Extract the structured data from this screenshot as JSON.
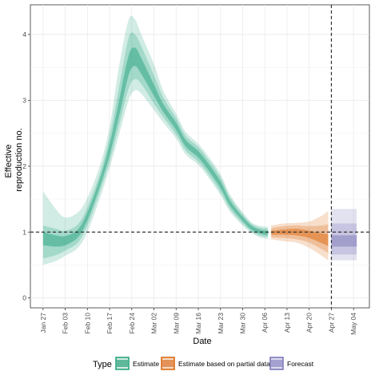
{
  "chart_data": {
    "type": "area",
    "xlabel": "Date",
    "ylabel_lines": [
      "Effective",
      "reproduction no."
    ],
    "x_tick_labels": [
      "Jan 27",
      "Feb 03",
      "Feb 10",
      "Feb 17",
      "Feb 24",
      "Mar 02",
      "Mar 09",
      "Mar 16",
      "Mar 23",
      "Mar 30",
      "Apr 06",
      "Apr 13",
      "Apr 20",
      "Apr 27",
      "May 04"
    ],
    "y_tick_labels": [
      "0",
      "1",
      "2",
      "3",
      "4"
    ],
    "ylim": [
      -0.15,
      4.45
    ],
    "grid": true,
    "reference_line_y": 1,
    "vertical_line_date": "Apr 27",
    "colors": {
      "Estimate": "#1b9e77",
      "Estimate based on partial data": "#d95f02",
      "Forecast": "#7570b3"
    },
    "legend": {
      "title": "Type",
      "position": "bottom",
      "entries": [
        "Estimate",
        "Estimate based on partial data",
        "Forecast"
      ]
    },
    "series": [
      {
        "name": "Estimate",
        "points": [
          {
            "x": "Jan 27",
            "median": 0.9,
            "lo50": 0.8,
            "hi50": 1.0,
            "lo90": 0.6,
            "hi90": 1.1,
            "lo95": 0.5,
            "hi95": 1.62
          },
          {
            "x": "Jan 31",
            "median": 0.85,
            "lo50": 0.78,
            "hi50": 0.95,
            "lo90": 0.65,
            "hi90": 1.05,
            "lo95": 0.56,
            "hi95": 1.35
          },
          {
            "x": "Feb 03",
            "median": 0.86,
            "lo50": 0.8,
            "hi50": 0.94,
            "lo90": 0.72,
            "hi90": 1.02,
            "lo95": 0.64,
            "hi95": 1.22
          },
          {
            "x": "Feb 07",
            "median": 0.98,
            "lo50": 0.92,
            "hi50": 1.04,
            "lo90": 0.84,
            "hi90": 1.12,
            "lo95": 0.76,
            "hi95": 1.3
          },
          {
            "x": "Feb 10",
            "median": 1.24,
            "lo50": 1.18,
            "hi50": 1.3,
            "lo90": 1.1,
            "hi90": 1.38,
            "lo95": 1.0,
            "hi95": 1.52
          },
          {
            "x": "Feb 14",
            "median": 1.76,
            "lo50": 1.7,
            "hi50": 1.82,
            "lo90": 1.62,
            "hi90": 1.9,
            "lo95": 1.52,
            "hi95": 2.02
          },
          {
            "x": "Feb 17",
            "median": 2.25,
            "lo50": 2.17,
            "hi50": 2.33,
            "lo90": 2.07,
            "hi90": 2.45,
            "lo95": 1.97,
            "hi95": 2.6
          },
          {
            "x": "Feb 20",
            "median": 2.88,
            "lo50": 2.76,
            "hi50": 3.0,
            "lo90": 2.62,
            "hi90": 3.2,
            "lo95": 2.48,
            "hi95": 3.52
          },
          {
            "x": "Feb 23",
            "median": 3.55,
            "lo50": 3.38,
            "hi50": 3.68,
            "lo90": 3.18,
            "hi90": 3.95,
            "lo95": 3.0,
            "hi95": 4.22
          },
          {
            "x": "Feb 25",
            "median": 3.68,
            "lo50": 3.52,
            "hi50": 3.8,
            "lo90": 3.32,
            "hi90": 4.0,
            "lo95": 3.15,
            "hi95": 4.23
          },
          {
            "x": "Feb 27",
            "median": 3.52,
            "lo50": 3.4,
            "hi50": 3.64,
            "lo90": 3.25,
            "hi90": 3.82,
            "lo95": 3.1,
            "hi95": 4.0
          },
          {
            "x": "Mar 02",
            "median": 3.15,
            "lo50": 3.07,
            "hi50": 3.24,
            "lo90": 2.95,
            "hi90": 3.38,
            "lo95": 2.85,
            "hi95": 3.55
          },
          {
            "x": "Mar 05",
            "median": 2.88,
            "lo50": 2.82,
            "hi50": 2.94,
            "lo90": 2.74,
            "hi90": 3.04,
            "lo95": 2.66,
            "hi95": 3.14
          },
          {
            "x": "Mar 09",
            "median": 2.6,
            "lo50": 2.55,
            "hi50": 2.66,
            "lo90": 2.48,
            "hi90": 2.73,
            "lo95": 2.42,
            "hi95": 2.8
          },
          {
            "x": "Mar 12",
            "median": 2.35,
            "lo50": 2.3,
            "hi50": 2.4,
            "lo90": 2.24,
            "hi90": 2.46,
            "lo95": 2.18,
            "hi95": 2.52
          },
          {
            "x": "Mar 16",
            "median": 2.18,
            "lo50": 2.13,
            "hi50": 2.23,
            "lo90": 2.07,
            "hi90": 2.29,
            "lo95": 2.02,
            "hi95": 2.34
          },
          {
            "x": "Mar 19",
            "median": 2.0,
            "lo50": 1.95,
            "hi50": 2.05,
            "lo90": 1.89,
            "hi90": 2.11,
            "lo95": 1.84,
            "hi95": 2.16
          },
          {
            "x": "Mar 23",
            "median": 1.72,
            "lo50": 1.67,
            "hi50": 1.77,
            "lo90": 1.61,
            "hi90": 1.83,
            "lo95": 1.56,
            "hi95": 1.88
          },
          {
            "x": "Mar 26",
            "median": 1.44,
            "lo50": 1.4,
            "hi50": 1.48,
            "lo90": 1.35,
            "hi90": 1.53,
            "lo95": 1.31,
            "hi95": 1.57
          },
          {
            "x": "Mar 30",
            "median": 1.2,
            "lo50": 1.17,
            "hi50": 1.23,
            "lo90": 1.13,
            "hi90": 1.27,
            "lo95": 1.1,
            "hi95": 1.3
          },
          {
            "x": "Apr 02",
            "median": 1.06,
            "lo50": 1.03,
            "hi50": 1.09,
            "lo90": 1.0,
            "hi90": 1.12,
            "lo95": 0.98,
            "hi95": 1.14
          },
          {
            "x": "Apr 05",
            "median": 1.0,
            "lo50": 0.97,
            "hi50": 1.03,
            "lo90": 0.94,
            "hi90": 1.06,
            "lo95": 0.91,
            "hi95": 1.09
          },
          {
            "x": "Apr 07",
            "median": 0.99,
            "lo50": 0.96,
            "hi50": 1.02,
            "lo90": 0.93,
            "hi90": 1.05,
            "lo95": 0.9,
            "hi95": 1.08
          }
        ]
      },
      {
        "name": "Estimate based on partial data",
        "points": [
          {
            "x": "Apr 08",
            "median": 0.99,
            "lo50": 0.96,
            "hi50": 1.02,
            "lo90": 0.92,
            "hi90": 1.06,
            "lo95": 0.89,
            "hi95": 1.1
          },
          {
            "x": "Apr 12",
            "median": 1.0,
            "lo50": 0.96,
            "hi50": 1.04,
            "lo90": 0.91,
            "hi90": 1.09,
            "lo95": 0.86,
            "hi95": 1.13
          },
          {
            "x": "Apr 16",
            "median": 1.0,
            "lo50": 0.95,
            "hi50": 1.05,
            "lo90": 0.89,
            "hi90": 1.1,
            "lo95": 0.84,
            "hi95": 1.14
          },
          {
            "x": "Apr 20",
            "median": 0.96,
            "lo50": 0.91,
            "hi50": 1.02,
            "lo90": 0.84,
            "hi90": 1.09,
            "lo95": 0.76,
            "hi95": 1.16
          },
          {
            "x": "Apr 24",
            "median": 0.9,
            "lo50": 0.83,
            "hi50": 0.98,
            "lo90": 0.74,
            "hi90": 1.1,
            "lo95": 0.64,
            "hi95": 1.25
          },
          {
            "x": "Apr 26",
            "median": 0.87,
            "lo50": 0.79,
            "hi50": 0.97,
            "lo90": 0.68,
            "hi90": 1.12,
            "lo95": 0.57,
            "hi95": 1.32
          }
        ]
      },
      {
        "name": "Forecast",
        "points": [
          {
            "x": "Apr 27",
            "median": 0.85,
            "lo50": 0.78,
            "hi50": 0.95,
            "lo90": 0.66,
            "hi90": 1.13,
            "lo95": 0.57,
            "hi95": 1.35
          },
          {
            "x": "May 05",
            "median": 0.85,
            "lo50": 0.78,
            "hi50": 0.95,
            "lo90": 0.66,
            "hi90": 1.13,
            "lo95": 0.57,
            "hi95": 1.35
          }
        ]
      }
    ]
  }
}
